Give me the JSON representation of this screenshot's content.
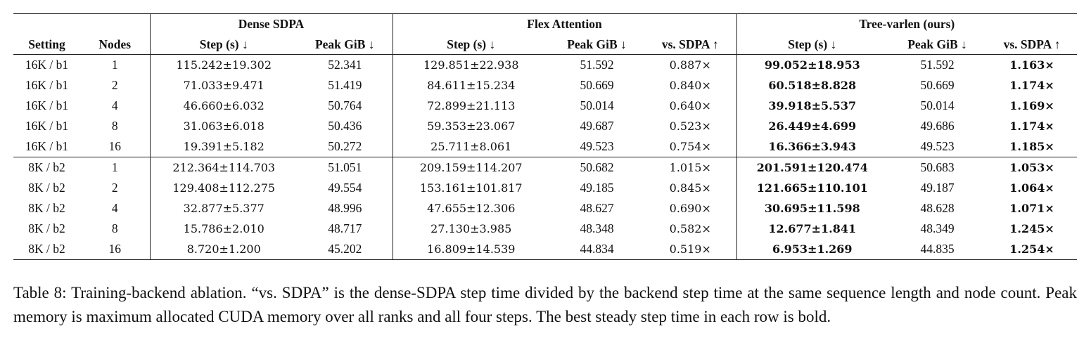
{
  "table": {
    "groups": [
      "Dense SDPA",
      "Flex Attention",
      "Tree-varlen (ours)"
    ],
    "columns": [
      "Setting",
      "Nodes",
      "Step (s) ↓",
      "Peak GiB ↓",
      "Step (s) ↓",
      "Peak GiB ↓",
      "vs. SDPA ↑",
      "Step (s) ↓",
      "Peak GiB ↓",
      "vs. SDPA ↑"
    ],
    "rows": [
      [
        "16K / b1",
        "1",
        "115.242±19.302",
        "52.341",
        "129.851±22.938",
        "51.592",
        "0.887×",
        "99.052±18.953",
        "51.592",
        "1.163×"
      ],
      [
        "16K / b1",
        "2",
        "71.033±9.471",
        "51.419",
        "84.611±15.234",
        "50.669",
        "0.840×",
        "60.518±8.828",
        "50.669",
        "1.174×"
      ],
      [
        "16K / b1",
        "4",
        "46.660±6.032",
        "50.764",
        "72.899±21.113",
        "50.014",
        "0.640×",
        "39.918±5.537",
        "50.014",
        "1.169×"
      ],
      [
        "16K / b1",
        "8",
        "31.063±6.018",
        "50.436",
        "59.353±23.067",
        "49.687",
        "0.523×",
        "26.449±4.699",
        "49.686",
        "1.174×"
      ],
      [
        "16K / b1",
        "16",
        "19.391±5.182",
        "50.272",
        "25.711±8.061",
        "49.523",
        "0.754×",
        "16.366±3.943",
        "49.523",
        "1.185×"
      ],
      [
        "8K / b2",
        "1",
        "212.364±114.703",
        "51.051",
        "209.159±114.207",
        "50.682",
        "1.015×",
        "201.591±120.474",
        "50.683",
        "1.053×"
      ],
      [
        "8K / b2",
        "2",
        "129.408±112.275",
        "49.554",
        "153.161±101.817",
        "49.185",
        "0.845×",
        "121.665±110.101",
        "49.187",
        "1.064×"
      ],
      [
        "8K / b2",
        "4",
        "32.877±5.377",
        "48.996",
        "47.655±12.306",
        "48.627",
        "0.690×",
        "30.695±11.598",
        "48.628",
        "1.071×"
      ],
      [
        "8K / b2",
        "8",
        "15.786±2.010",
        "48.717",
        "27.130±3.985",
        "48.348",
        "0.582×",
        "12.677±1.841",
        "48.349",
        "1.245×"
      ],
      [
        "8K / b2",
        "16",
        "8.720±1.200",
        "45.202",
        "16.809±14.539",
        "44.834",
        "0.519×",
        "6.953±1.269",
        "44.835",
        "1.254×"
      ]
    ]
  },
  "caption": "Table 8: Training-backend ablation. “vs. SDPA” is the dense-SDPA step time divided by the backend step time at the same sequence length and node count. Peak memory is maximum allocated CUDA memory over all ranks and all four steps. The best steady step time in each row is bold."
}
